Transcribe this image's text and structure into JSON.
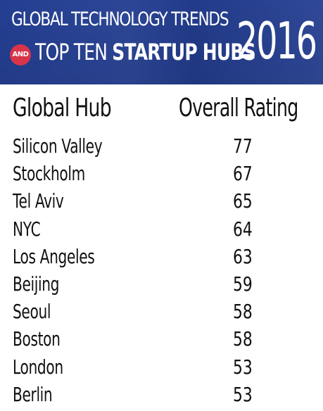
{
  "banner": {
    "line1": "GLOBAL TECHNOLOGY TRENDS",
    "and_badge": "AND",
    "line2_regular": "TOP TEN ",
    "line2_bold": "STARTUP HUBS",
    "year": "2016",
    "background_color": "#26429a",
    "badge_color": "#d8344a"
  },
  "table": {
    "headers": {
      "hub": "Global Hub",
      "rating": "Overall Rating"
    },
    "rows": [
      {
        "hub": "Silicon Valley",
        "rating": "77"
      },
      {
        "hub": "Stockholm",
        "rating": "67"
      },
      {
        "hub": "Tel Aviv",
        "rating": "65"
      },
      {
        "hub": "NYC",
        "rating": "64"
      },
      {
        "hub": "Los Angeles",
        "rating": "63"
      },
      {
        "hub": "Beijing",
        "rating": "59"
      },
      {
        "hub": "Seoul",
        "rating": "58"
      },
      {
        "hub": "Boston",
        "rating": "58"
      },
      {
        "hub": "London",
        "rating": "53"
      },
      {
        "hub": "Berlin",
        "rating": "53"
      }
    ]
  }
}
